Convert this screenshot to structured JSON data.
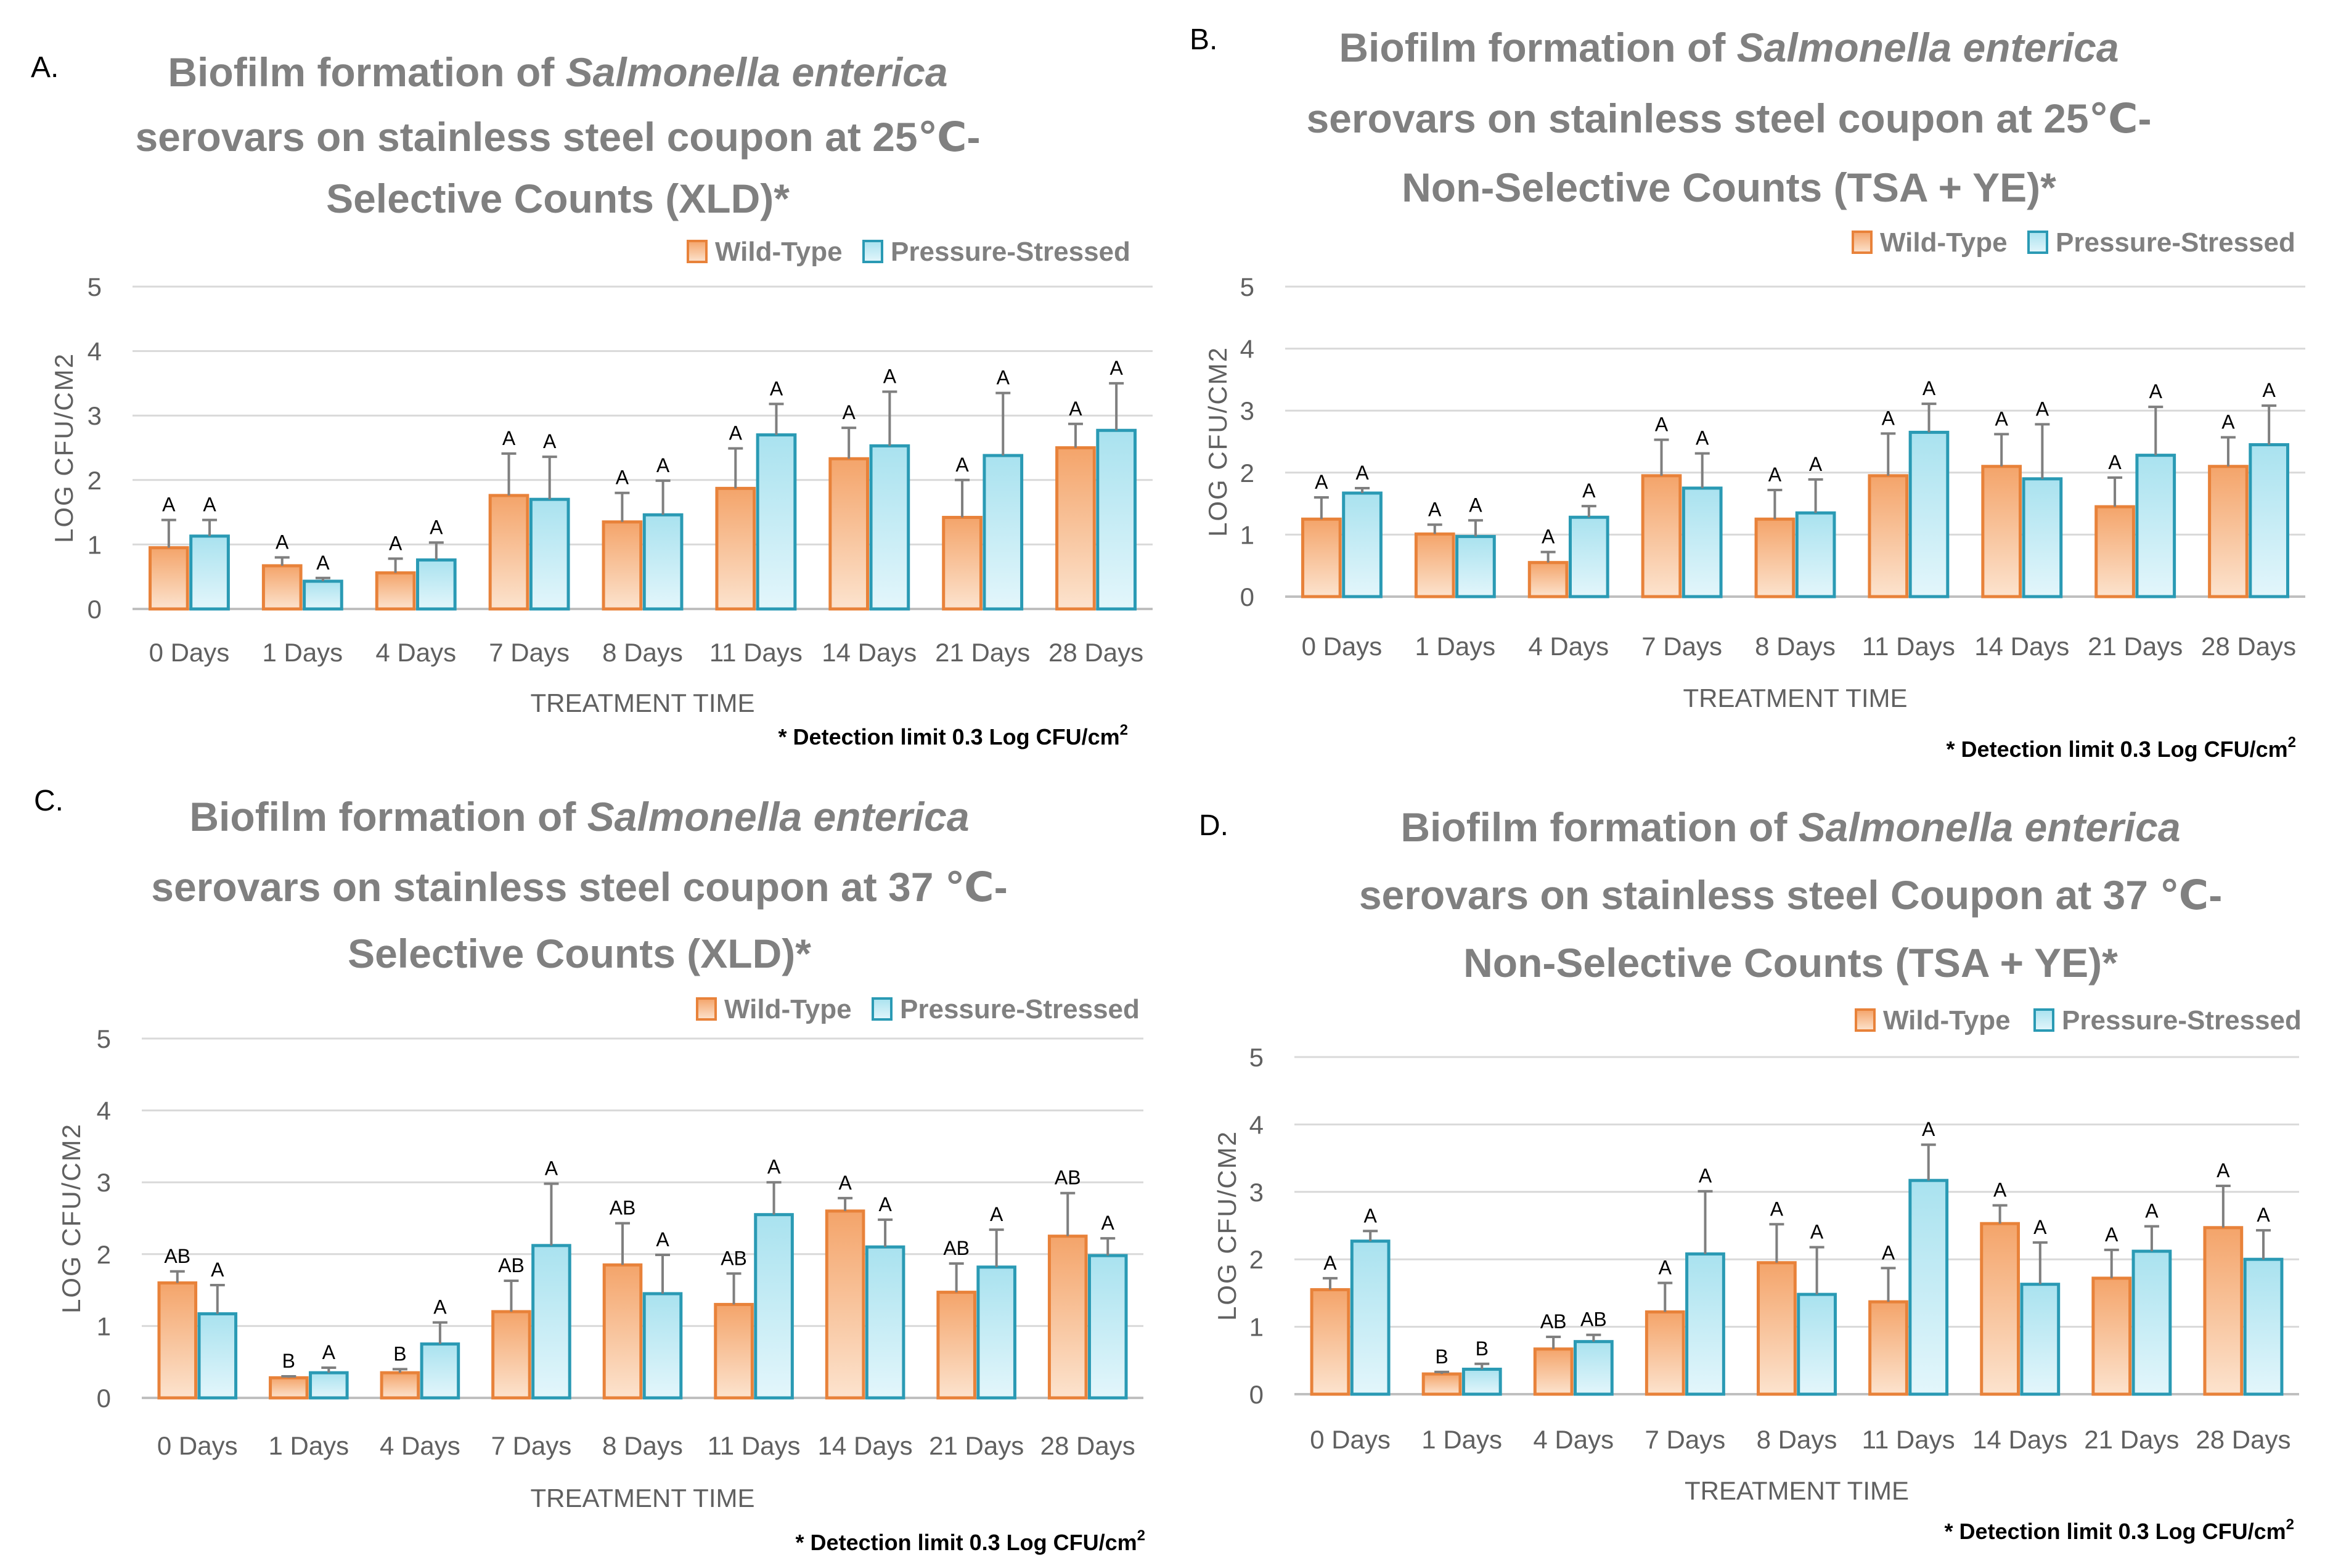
{
  "colors": {
    "wild": "#F4A46A",
    "wild_light": "#FCE3CE",
    "wild_stroke": "#E8823A",
    "stressed": "#44B2C9",
    "stressed_light": "#D8F1F8",
    "stressed_stroke": "#2A9AB4",
    "title": "#808080",
    "axis_text": "#606060",
    "grid": "#D9D9D9",
    "errorbar": "#7F7F7F"
  },
  "chart_data": [
    {
      "panel_label": "A.",
      "type": "bar",
      "title_lines": [
        [
          {
            "t": "Biofilm formation of ",
            "i": false
          },
          {
            "t": "Salmonella enterica",
            "i": true
          }
        ],
        [
          {
            "t": "serovars on stainless steel coupon at 25℃-",
            "i": false
          }
        ],
        [
          {
            "t": "Selective Counts (XLD)*",
            "i": false
          }
        ]
      ],
      "legend": [
        "Wild-Type",
        "Pressure-Stressed"
      ],
      "categories": [
        "0 Days",
        "1 Days",
        "4 Days",
        "7 Days",
        "8 Days",
        "11 Days",
        "14 Days",
        "21 Days",
        "28 Days"
      ],
      "series": [
        {
          "name": "Wild-Type",
          "values": [
            0.95,
            0.67,
            0.56,
            1.76,
            1.35,
            1.87,
            2.33,
            1.42,
            2.5
          ],
          "errors": [
            0.43,
            0.13,
            0.22,
            0.65,
            0.45,
            0.62,
            0.48,
            0.58,
            0.37
          ],
          "letters": [
            "A",
            "A",
            "A",
            "A",
            "A",
            "A",
            "A",
            "A",
            "A"
          ]
        },
        {
          "name": "Pressure-Stressed",
          "values": [
            1.13,
            0.43,
            0.76,
            1.7,
            1.46,
            2.7,
            2.53,
            2.38,
            2.77
          ],
          "errors": [
            0.25,
            0.05,
            0.27,
            0.66,
            0.53,
            0.48,
            0.84,
            0.97,
            0.73
          ],
          "letters": [
            "A",
            "A",
            "A",
            "A",
            "A",
            "A",
            "A",
            "A",
            "A"
          ]
        }
      ],
      "ylabel": "LOG CFU/CM2",
      "xlabel": "TREATMENT TIME",
      "ylim": [
        0,
        5
      ],
      "yticks": [
        "0",
        "1",
        "2",
        "3",
        "4",
        "5"
      ],
      "footnote": "* Detection limit 0.3 Log CFU/cm",
      "footnote_sup": "2"
    },
    {
      "panel_label": "B.",
      "type": "bar",
      "title_lines": [
        [
          {
            "t": "Biofilm formation of ",
            "i": false
          },
          {
            "t": "Salmonella enterica",
            "i": true
          }
        ],
        [
          {
            "t": "serovars on stainless steel coupon at 25℃-",
            "i": false
          }
        ],
        [
          {
            "t": "Non-Selective Counts (TSA + YE)*",
            "i": false
          }
        ]
      ],
      "legend": [
        "Wild-Type",
        "Pressure-Stressed"
      ],
      "categories": [
        "0 Days",
        "1 Days",
        "4 Days",
        "7 Days",
        "8 Days",
        "11 Days",
        "14 Days",
        "21 Days",
        "28 Days"
      ],
      "series": [
        {
          "name": "Wild-Type",
          "values": [
            1.25,
            1.01,
            0.55,
            1.95,
            1.25,
            1.95,
            2.1,
            1.45,
            2.1
          ],
          "errors": [
            0.35,
            0.15,
            0.17,
            0.58,
            0.47,
            0.68,
            0.52,
            0.47,
            0.47
          ],
          "letters": [
            "A",
            "A",
            "A",
            "A",
            "A",
            "A",
            "A",
            "A",
            "A"
          ]
        },
        {
          "name": "Pressure-Stressed",
          "values": [
            1.67,
            0.97,
            1.28,
            1.75,
            1.35,
            2.65,
            1.9,
            2.28,
            2.45
          ],
          "errors": [
            0.08,
            0.26,
            0.18,
            0.56,
            0.54,
            0.46,
            0.88,
            0.78,
            0.63
          ],
          "letters": [
            "A",
            "A",
            "A",
            "A",
            "A",
            "A",
            "A",
            "A",
            "A"
          ]
        }
      ],
      "ylabel": "LOG CFU/CM2",
      "xlabel": "TREATMENT TIME",
      "ylim": [
        0,
        5
      ],
      "yticks": [
        "0",
        "1",
        "2",
        "3",
        "4",
        "5"
      ],
      "footnote": "* Detection limit 0.3 Log CFU/cm",
      "footnote_sup": "2"
    },
    {
      "panel_label": "C.",
      "type": "bar",
      "title_lines": [
        [
          {
            "t": "Biofilm formation of ",
            "i": false
          },
          {
            "t": "Salmonella enterica",
            "i": true
          }
        ],
        [
          {
            "t": "serovars on stainless steel coupon at 37 ℃-",
            "i": false
          }
        ],
        [
          {
            "t": "Selective Counts (XLD)*",
            "i": false
          }
        ]
      ],
      "legend": [
        "Wild-Type",
        "Pressure-Stressed"
      ],
      "categories": [
        "0 Days",
        "1 Days",
        "4 Days",
        "7 Days",
        "8 Days",
        "11 Days",
        "14 Days",
        "21 Days",
        "28 Days"
      ],
      "series": [
        {
          "name": "Wild-Type",
          "values": [
            1.6,
            0.28,
            0.35,
            1.2,
            1.85,
            1.3,
            2.6,
            1.47,
            2.25
          ],
          "errors": [
            0.16,
            0.02,
            0.05,
            0.43,
            0.58,
            0.43,
            0.18,
            0.4,
            0.6
          ],
          "letters": [
            "AB",
            "B",
            "B",
            "AB",
            "AB",
            "AB",
            "A",
            "AB",
            "AB"
          ]
        },
        {
          "name": "Pressure-Stressed",
          "values": [
            1.17,
            0.35,
            0.75,
            2.12,
            1.45,
            2.55,
            2.1,
            1.82,
            1.98
          ],
          "errors": [
            0.4,
            0.07,
            0.3,
            0.86,
            0.54,
            0.45,
            0.38,
            0.52,
            0.24
          ],
          "letters": [
            "A",
            "A",
            "A",
            "A",
            "A",
            "A",
            "A",
            "A",
            "A"
          ]
        }
      ],
      "ylabel": "LOG CFU/CM2",
      "xlabel": "TREATMENT TIME",
      "ylim": [
        0,
        5
      ],
      "yticks": [
        "0",
        "1",
        "2",
        "3",
        "4",
        "5"
      ],
      "footnote": "* Detection limit 0.3 Log CFU/cm",
      "footnote_sup": "2"
    },
    {
      "panel_label": "D.",
      "type": "bar",
      "title_lines": [
        [
          {
            "t": "Biofilm formation of ",
            "i": false
          },
          {
            "t": "Salmonella enterica",
            "i": true
          }
        ],
        [
          {
            "t": "serovars on stainless steel Coupon at 37 ℃-",
            "i": false
          }
        ],
        [
          {
            "t": "Non-Selective Counts (TSA + YE)*",
            "i": false
          }
        ]
      ],
      "legend": [
        "Wild-Type",
        "Pressure-Stressed"
      ],
      "categories": [
        "0 Days",
        "1 Days",
        "4 Days",
        "7 Days",
        "8 Days",
        "11 Days",
        "14 Days",
        "21 Days",
        "28 Days"
      ],
      "series": [
        {
          "name": "Wild-Type",
          "values": [
            1.55,
            0.3,
            0.67,
            1.22,
            1.95,
            1.37,
            2.53,
            1.72,
            2.47
          ],
          "errors": [
            0.17,
            0.03,
            0.18,
            0.43,
            0.57,
            0.5,
            0.27,
            0.42,
            0.62
          ],
          "letters": [
            "A",
            "B",
            "AB",
            "A",
            "A",
            "A",
            "A",
            "A",
            "A"
          ]
        },
        {
          "name": "Pressure-Stressed",
          "values": [
            2.27,
            0.37,
            0.78,
            2.08,
            1.48,
            3.17,
            1.63,
            2.12,
            2.0
          ],
          "errors": [
            0.15,
            0.08,
            0.1,
            0.93,
            0.7,
            0.53,
            0.62,
            0.37,
            0.43
          ],
          "letters": [
            "A",
            "B",
            "AB",
            "A",
            "A",
            "A",
            "A",
            "A",
            "A"
          ]
        }
      ],
      "ylabel": "LOG CFU/CM2",
      "xlabel": "TREATMENT TIME",
      "ylim": [
        0,
        5
      ],
      "yticks": [
        "0",
        "1",
        "2",
        "3",
        "4",
        "5"
      ],
      "footnote": "* Detection limit 0.3 Log CFU/cm",
      "footnote_sup": "2"
    }
  ]
}
